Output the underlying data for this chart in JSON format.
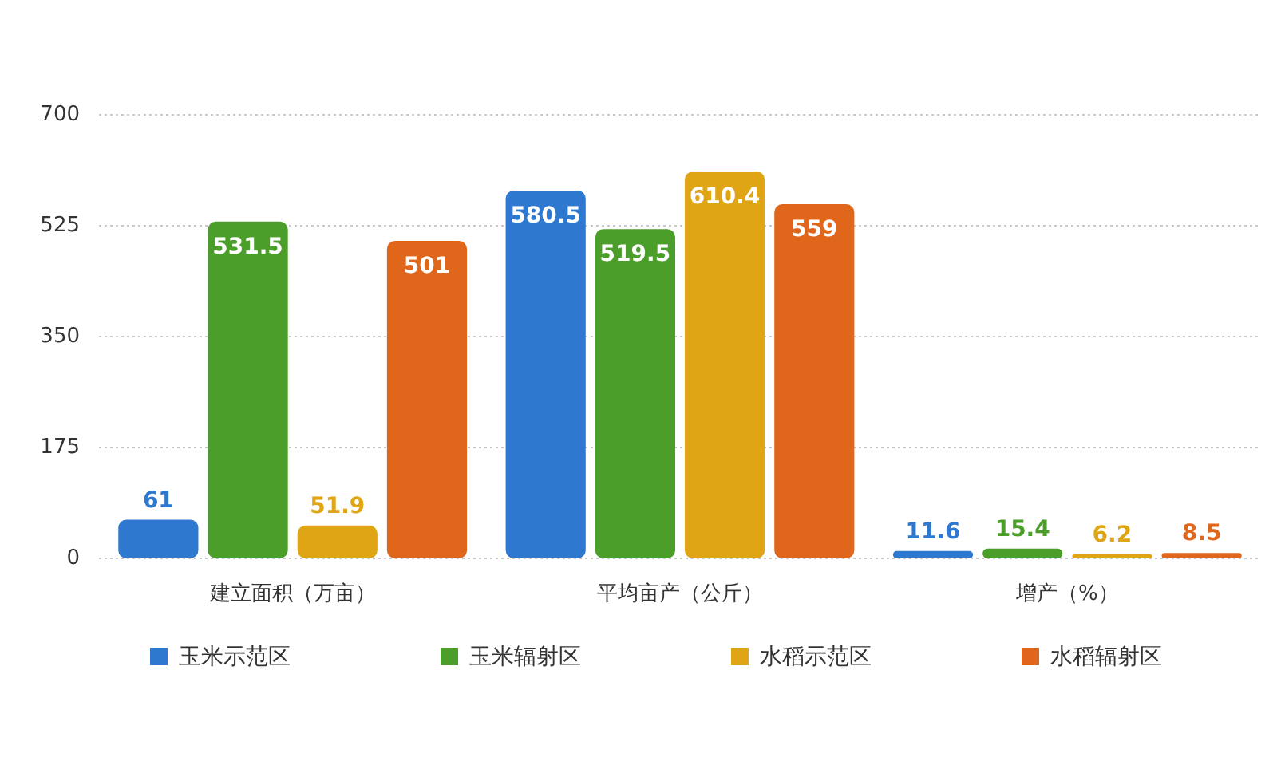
{
  "chart_data": {
    "type": "bar",
    "categories": [
      "建立面积（万亩）",
      "平均亩产（公斤）",
      "增产（%）"
    ],
    "series": [
      {
        "name": "玉米示范区",
        "color": "#2f78d0",
        "values": [
          61,
          580.5,
          11.6
        ]
      },
      {
        "name": "玉米辐射区",
        "color": "#4c9e2b",
        "values": [
          531.5,
          519.5,
          15.4
        ]
      },
      {
        "name": "水稻示范区",
        "color": "#e0a514",
        "values": [
          51.9,
          610.4,
          6.2
        ]
      },
      {
        "name": "水稻辐射区",
        "color": "#e0661b",
        "values": [
          501,
          559,
          8.5
        ]
      }
    ],
    "ylim": [
      0,
      700
    ],
    "yticks": [
      0,
      175,
      350,
      525,
      700
    ],
    "grid": "y",
    "legend": "bottom",
    "data_labels": true
  }
}
